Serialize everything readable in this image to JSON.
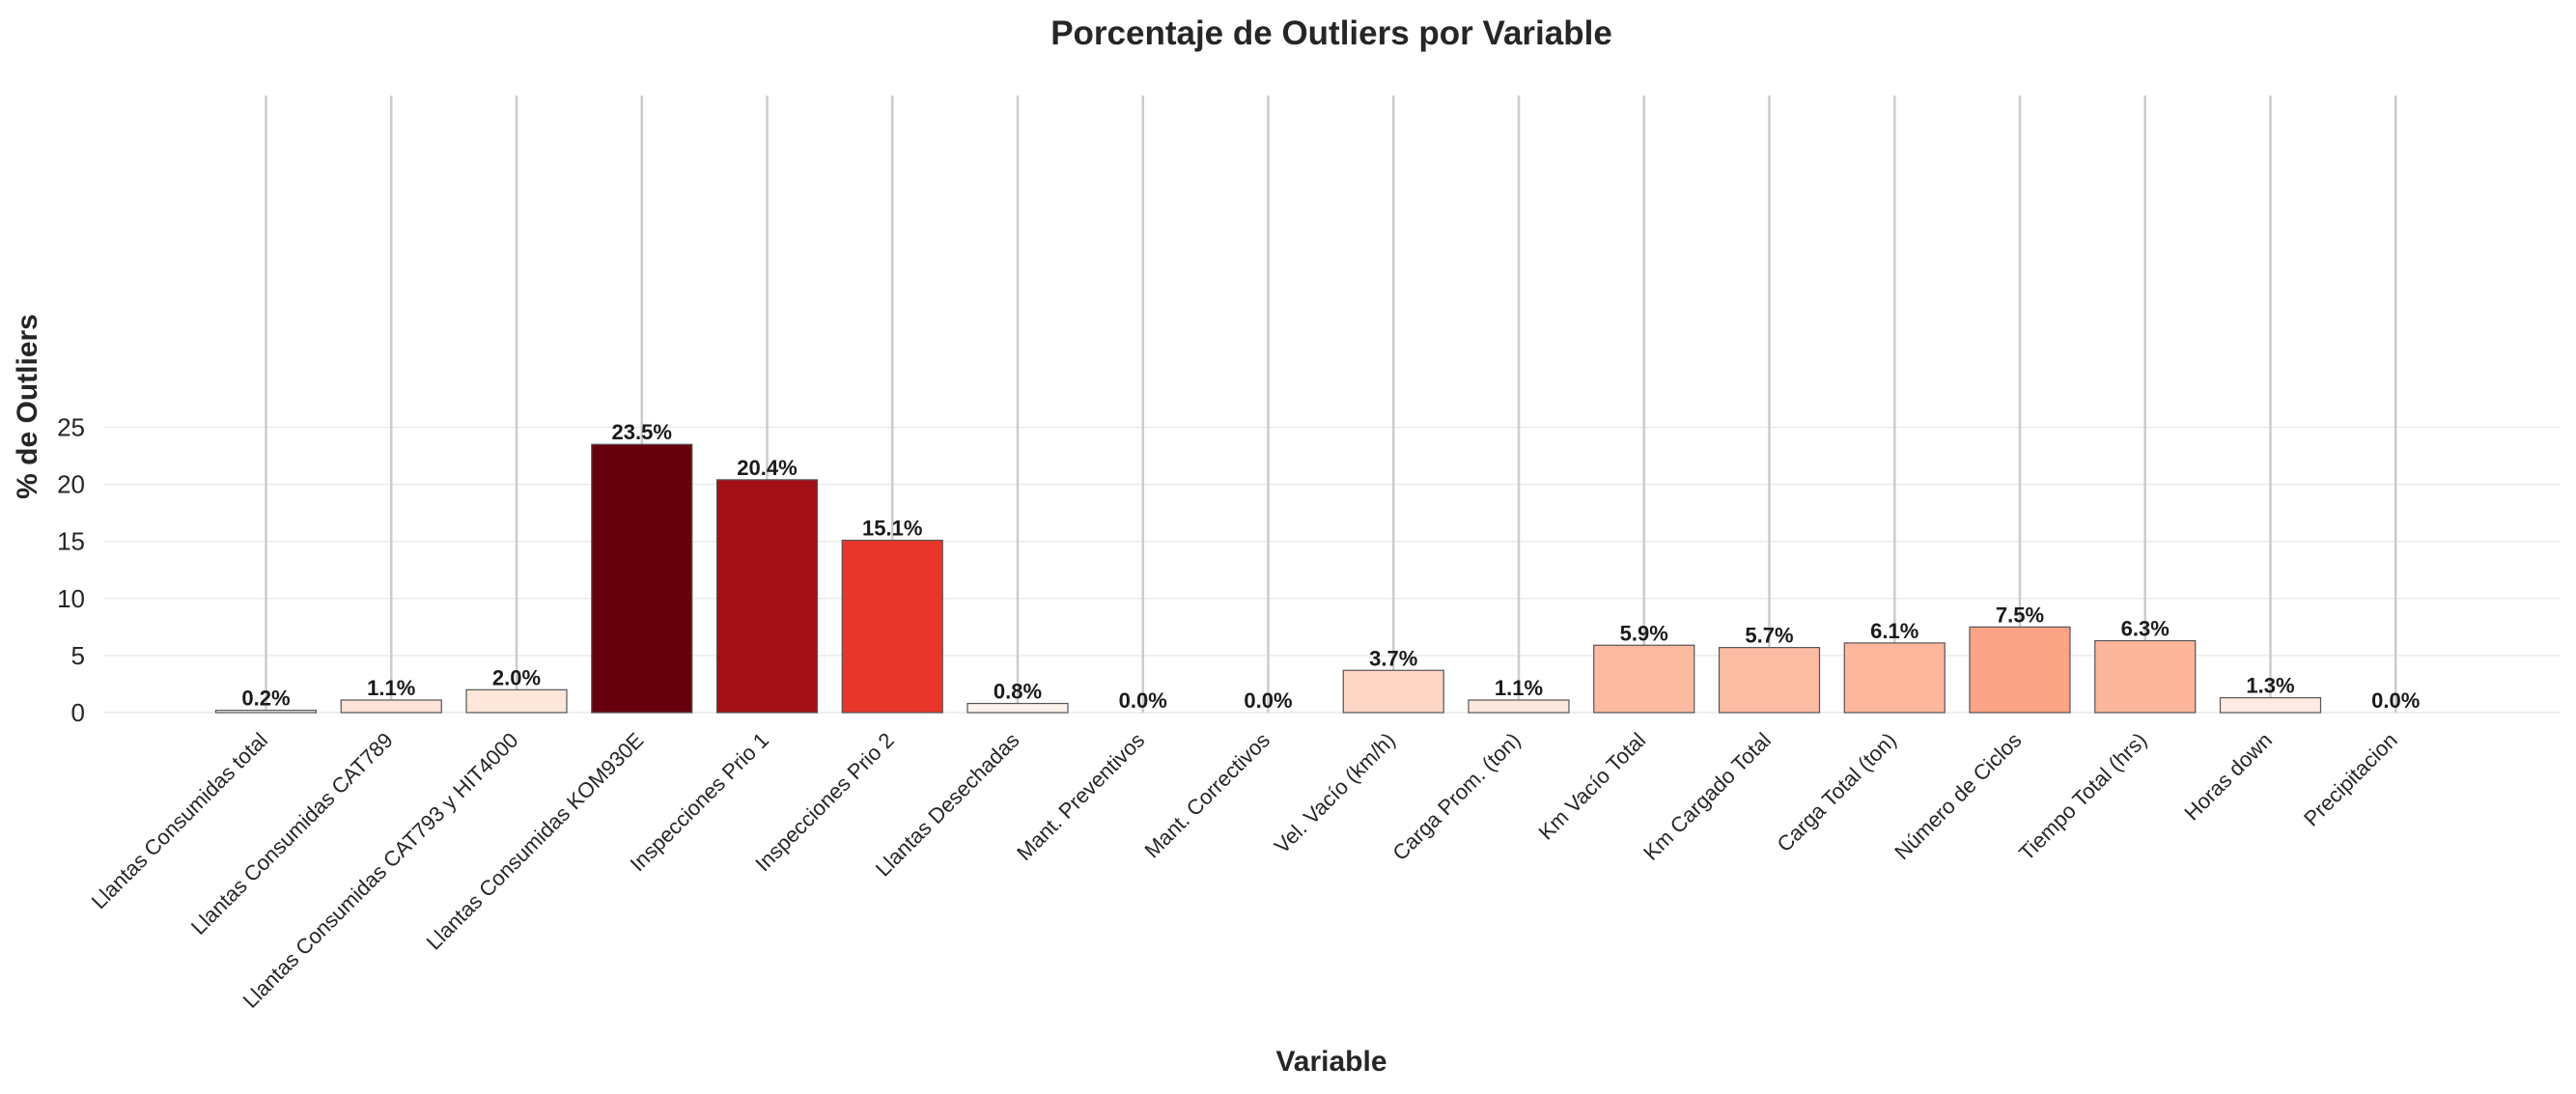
{
  "chart_data": {
    "type": "bar",
    "title": "Porcentaje de Outliers por Variable",
    "xlabel": "Variable",
    "ylabel": "% de Outliers",
    "ylim": [
      0,
      27
    ],
    "yticks": [
      0,
      5,
      10,
      15,
      20,
      25
    ],
    "grid": true,
    "categories": [
      "Llantas Consumidas total",
      "Llantas Consumidas CAT789",
      "Llantas Consumidas CAT793 y HIT4000",
      "Llantas Consumidas KOM930E",
      "Inspecciones Prio 1",
      "Inspecciones Prio 2",
      "Llantas Desechadas",
      "Mant. Preventivos",
      "Mant. Correctivos",
      "Vel. Vacío (km/h)",
      "Carga Prom. (ton)",
      "Km Vacío Total",
      "Km Cargado Total",
      "Carga Total (ton)",
      "Número de Ciclos",
      "Tiempo Total (hrs)",
      "Horas down",
      "Precipitacion"
    ],
    "values": [
      0.2,
      1.1,
      2.0,
      23.5,
      20.4,
      15.1,
      0.8,
      0.0,
      0.0,
      3.7,
      1.1,
      5.9,
      5.7,
      6.1,
      7.5,
      6.3,
      1.3,
      0.0
    ],
    "data_labels": [
      "0.2%",
      "1.1%",
      "2.0%",
      "23.5%",
      "20.4%",
      "15.1%",
      "0.8%",
      "0.0%",
      "0.0%",
      "3.7%",
      "1.1%",
      "5.9%",
      "5.7%",
      "6.1%",
      "7.5%",
      "6.3%",
      "1.3%",
      "0.0%"
    ],
    "colors": [
      "#fff5f0",
      "#fee3d7",
      "#fee6da",
      "#67000d",
      "#a30f15",
      "#e9362a",
      "#fff2ec",
      "#fff5f0",
      "#fff5f0",
      "#fdd5c4",
      "#fee8de",
      "#fcbba1",
      "#fcbca3",
      "#fcb79d",
      "#fca486",
      "#fcb69b",
      "#ffebe3",
      "#fff5f0"
    ],
    "gridline_color": "#ebebeb",
    "vline_color": "#cccccc",
    "bar_edge_color": "#555555"
  }
}
